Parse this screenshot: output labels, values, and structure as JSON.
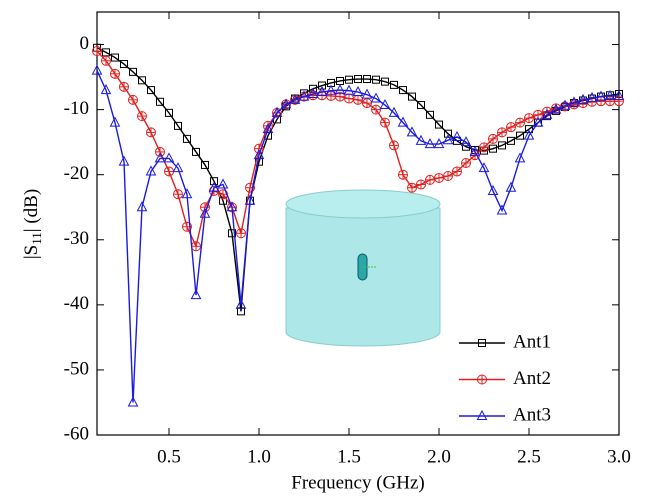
{
  "chart_data": {
    "type": "line",
    "xlabel": "Frequency (GHz)",
    "ylabel": [
      "|S",
      "11",
      "| (dB)"
    ],
    "xlim": [
      0.1,
      3.0
    ],
    "ylim": [
      -60,
      5
    ],
    "xticks": [
      0.5,
      {
        "value": 1,
        "label": "1.0"
      },
      1.5,
      {
        "value": 2,
        "label": "2.0"
      },
      2.5,
      {
        "value": 3,
        "label": "3.0"
      }
    ],
    "yticks": [
      0,
      -10,
      -20,
      -30,
      -40,
      -50,
      -60
    ],
    "legend": "lower right",
    "x": [
      0.1,
      0.15,
      0.2,
      0.25,
      0.3,
      0.35,
      0.4,
      0.45,
      0.5,
      0.55,
      0.6,
      0.65,
      0.7,
      0.75,
      0.8,
      0.85,
      0.9,
      0.95,
      1.0,
      1.05,
      1.1,
      1.15,
      1.2,
      1.25,
      1.3,
      1.35,
      1.4,
      1.45,
      1.5,
      1.55,
      1.6,
      1.65,
      1.7,
      1.75,
      1.8,
      1.85,
      1.9,
      1.95,
      2.0,
      2.05,
      2.1,
      2.15,
      2.2,
      2.25,
      2.3,
      2.35,
      2.4,
      2.45,
      2.5,
      2.55,
      2.6,
      2.65,
      2.7,
      2.75,
      2.8,
      2.85,
      2.9,
      2.95,
      3.0
    ],
    "series": [
      {
        "name": "Ant1",
        "color": "#000000",
        "marker": "square",
        "values": [
          -0.5,
          -1.2,
          -2,
          -3,
          -4.2,
          -5.5,
          -7,
          -8.8,
          -10.5,
          -12.5,
          -14.5,
          -16.5,
          -18.5,
          -21,
          -24,
          -29,
          -41,
          -24,
          -18,
          -14,
          -11.5,
          -9.5,
          -8.3,
          -7.5,
          -6.8,
          -6.3,
          -5.9,
          -5.6,
          -5.4,
          -5.3,
          -5.3,
          -5.4,
          -5.7,
          -6.2,
          -7,
          -8,
          -9.3,
          -10.8,
          -12.3,
          -13.7,
          -14.8,
          -15.7,
          -16.2,
          -16.3,
          -16,
          -15.5,
          -14.8,
          -14,
          -13,
          -12,
          -11,
          -10.2,
          -9.6,
          -9,
          -8.6,
          -8.3,
          -8,
          -7.8,
          -7.6
        ]
      },
      {
        "name": "Ant2",
        "color": "#e02020",
        "marker": "circle",
        "values": [
          -1,
          -2.5,
          -4.5,
          -6.5,
          -8.5,
          -11,
          -13.5,
          -16.5,
          -19.5,
          -23,
          -28,
          -31,
          -25,
          -22.5,
          -23,
          -25,
          -29,
          -22,
          -16,
          -12.5,
          -10.5,
          -9.2,
          -8.5,
          -8,
          -7.8,
          -7.8,
          -7.9,
          -8,
          -8.3,
          -8.5,
          -9,
          -10,
          -12,
          -15.5,
          -20,
          -22,
          -21.5,
          -20.8,
          -20.5,
          -20.2,
          -19.5,
          -18.2,
          -17,
          -15.8,
          -14.5,
          -13.5,
          -12.7,
          -12,
          -11.3,
          -10.8,
          -10.3,
          -9.8,
          -9.5,
          -9.2,
          -9,
          -8.8,
          -8.7,
          -8.7,
          -8.7
        ]
      },
      {
        "name": "Ant3",
        "color": "#1a1ae0",
        "marker": "triangle",
        "values": [
          -4,
          -7,
          -12,
          -18,
          -55,
          -25,
          -19.5,
          -17.5,
          -17.5,
          -19,
          -23,
          -38.5,
          -26,
          -22,
          -21.5,
          -25,
          -40,
          -24,
          -17,
          -13,
          -10.5,
          -9.2,
          -8.5,
          -8,
          -7.6,
          -7.3,
          -7.1,
          -7,
          -7.1,
          -7.3,
          -7.7,
          -8.3,
          -9.3,
          -10.5,
          -12,
          -13.5,
          -14.8,
          -15.3,
          -15.3,
          -14.7,
          -14.2,
          -15,
          -16.5,
          -19,
          -22.5,
          -25.5,
          -22,
          -17.5,
          -14,
          -12,
          -10.8,
          -10,
          -9.4,
          -8.9,
          -8.5,
          -8.2,
          -8,
          -7.9,
          -7.9
        ]
      }
    ]
  }
}
